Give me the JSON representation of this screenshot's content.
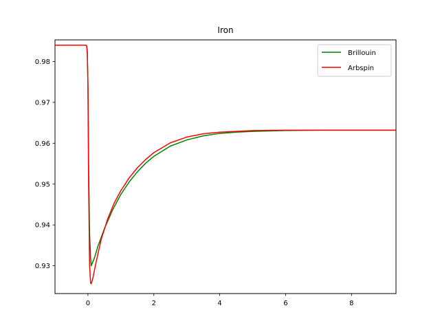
{
  "chart_data": {
    "type": "line",
    "title": "Iron",
    "xlabel": "",
    "ylabel": "",
    "xlim": [
      -1.0,
      9.35
    ],
    "ylim": [
      0.9232,
      0.9853
    ],
    "xticks": [
      0,
      2,
      4,
      6,
      8
    ],
    "yticks": [
      0.93,
      0.94,
      0.95,
      0.96,
      0.97,
      0.98
    ],
    "grid": false,
    "legend_position": "top-right",
    "series": [
      {
        "name": "Brillouin",
        "color": "#008000",
        "points": [
          [
            -1.0,
            0.984
          ],
          [
            -0.06,
            0.984
          ],
          [
            -0.04,
            0.9838
          ],
          [
            -0.02,
            0.9825
          ],
          [
            0.0,
            0.975
          ],
          [
            0.02,
            0.955
          ],
          [
            0.05,
            0.938
          ],
          [
            0.08,
            0.932
          ],
          [
            0.1,
            0.93
          ],
          [
            0.2,
            0.932
          ],
          [
            0.3,
            0.9347
          ],
          [
            0.5,
            0.9391
          ],
          [
            0.75,
            0.9437
          ],
          [
            1.0,
            0.9475
          ],
          [
            1.25,
            0.9505
          ],
          [
            1.5,
            0.953
          ],
          [
            1.75,
            0.9551
          ],
          [
            2.0,
            0.9568
          ],
          [
            2.5,
            0.9593
          ],
          [
            3.0,
            0.9608
          ],
          [
            3.5,
            0.9618
          ],
          [
            4.0,
            0.9624
          ],
          [
            4.5,
            0.9627
          ],
          [
            5.0,
            0.9629
          ],
          [
            6.0,
            0.9631
          ],
          [
            7.0,
            0.9632
          ],
          [
            8.0,
            0.9632
          ],
          [
            9.35,
            0.9632
          ]
        ]
      },
      {
        "name": "Arbspin",
        "color": "#ff0000",
        "points": [
          [
            -1.0,
            0.984
          ],
          [
            -0.06,
            0.984
          ],
          [
            -0.04,
            0.9838
          ],
          [
            -0.02,
            0.9825
          ],
          [
            0.0,
            0.974
          ],
          [
            0.02,
            0.95
          ],
          [
            0.05,
            0.93
          ],
          [
            0.08,
            0.9258
          ],
          [
            0.1,
            0.9256
          ],
          [
            0.15,
            0.927
          ],
          [
            0.25,
            0.931
          ],
          [
            0.4,
            0.9364
          ],
          [
            0.6,
            0.9415
          ],
          [
            0.8,
            0.9454
          ],
          [
            1.0,
            0.9484
          ],
          [
            1.25,
            0.9515
          ],
          [
            1.5,
            0.954
          ],
          [
            1.75,
            0.956
          ],
          [
            2.0,
            0.9577
          ],
          [
            2.5,
            0.9601
          ],
          [
            3.0,
            0.9615
          ],
          [
            3.5,
            0.9623
          ],
          [
            4.0,
            0.9627
          ],
          [
            4.5,
            0.9629
          ],
          [
            5.0,
            0.9631
          ],
          [
            6.0,
            0.9632
          ],
          [
            7.0,
            0.9632
          ],
          [
            8.0,
            0.9632
          ],
          [
            9.35,
            0.9632
          ]
        ]
      }
    ]
  }
}
